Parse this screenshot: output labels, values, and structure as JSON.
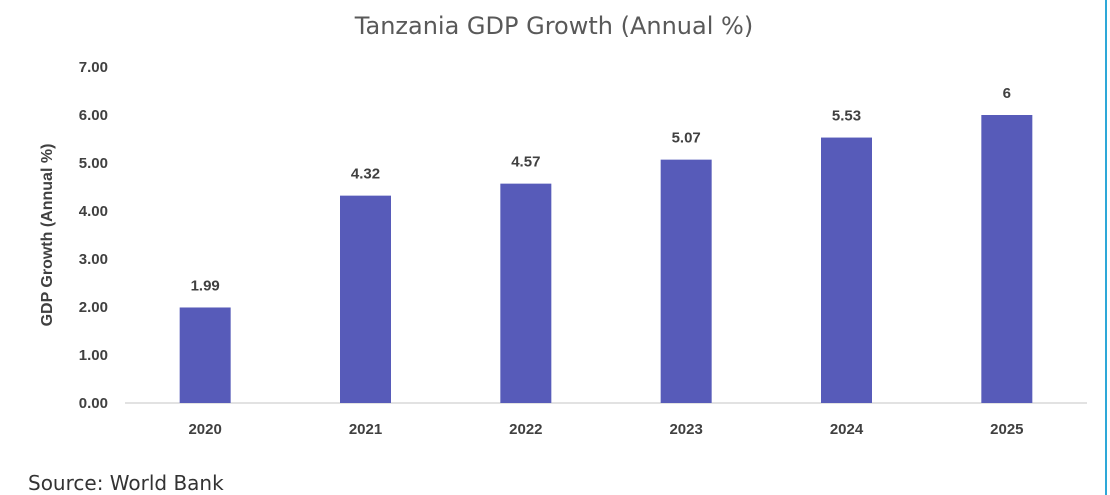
{
  "chart_data": {
    "type": "bar",
    "title": "Tanzania GDP Growth (Annual %)",
    "xlabel": "",
    "ylabel": "GDP Growth (Annual %)",
    "categories": [
      "2020",
      "2021",
      "2022",
      "2023",
      "2024",
      "2025"
    ],
    "values": [
      1.99,
      4.32,
      4.57,
      5.07,
      5.53,
      6
    ],
    "value_labels": [
      "1.99",
      "4.32",
      "4.57",
      "5.07",
      "5.53",
      "6"
    ],
    "ylim": [
      0,
      7
    ],
    "yticks": [
      "0.00",
      "1.00",
      "2.00",
      "3.00",
      "4.00",
      "5.00",
      "6.00",
      "7.00"
    ],
    "grid": false,
    "legend": "none",
    "bar_color": "#575bb9"
  },
  "source": "Source: World Bank"
}
